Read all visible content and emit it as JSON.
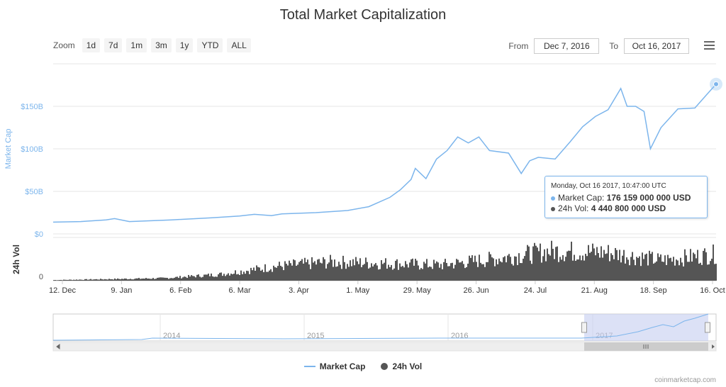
{
  "title": "Total Market Capitalization",
  "zoom": {
    "label": "Zoom",
    "buttons": [
      "1d",
      "7d",
      "1m",
      "3m",
      "1y",
      "YTD",
      "ALL"
    ]
  },
  "range": {
    "from_label": "From",
    "from_value": "Dec 7, 2016",
    "to_label": "To",
    "to_value": "Oct 16, 2017"
  },
  "menu_icon": "hamburger-menu-icon",
  "colors": {
    "market_cap": "#7cb5ec",
    "volume": "#555555",
    "navigator_mask": "#c4cdf0",
    "grid": "#e6e6e6"
  },
  "tooltip": {
    "header": "Monday, Oct 16 2017, 10:47:00 UTC",
    "market_cap_label": "Market Cap:",
    "market_cap_value": "176 159 000 000 USD",
    "volume_label": "24h Vol:",
    "volume_value": "4 440 800 000 USD"
  },
  "legend": {
    "market_cap": "Market Cap",
    "volume": "24h Vol"
  },
  "credit": "coinmarketcap.com",
  "chart_data": {
    "type": "line",
    "title": "Total Market Capitalization",
    "y_axis": {
      "label": "Market Cap",
      "tick_labels": [
        "$0",
        "$50B",
        "$100B",
        "$150B"
      ],
      "ticks": [
        0,
        50,
        100,
        150
      ],
      "ylim": [
        0,
        200
      ],
      "unit": "billion USD"
    },
    "volume_axis": {
      "label": "24h Vol",
      "tick_labels": [
        "0"
      ]
    },
    "x_axis": {
      "tick_labels": [
        "12. Dec",
        "9. Jan",
        "6. Feb",
        "6. Mar",
        "3. Apr",
        "1. May",
        "29. May",
        "26. Jun",
        "24. Jul",
        "21. Aug",
        "18. Sep",
        "16. Oct"
      ],
      "range": [
        "2016-12-07",
        "2017-10-16"
      ]
    },
    "series": [
      {
        "name": "Market Cap",
        "x": [
          "2016-12-07",
          "2016-12-20",
          "2017-01-01",
          "2017-01-05",
          "2017-01-12",
          "2017-02-01",
          "2017-02-20",
          "2017-03-05",
          "2017-03-12",
          "2017-03-20",
          "2017-03-25",
          "2017-04-10",
          "2017-04-25",
          "2017-05-05",
          "2017-05-15",
          "2017-05-20",
          "2017-05-25",
          "2017-05-27",
          "2017-06-01",
          "2017-06-06",
          "2017-06-11",
          "2017-06-16",
          "2017-06-21",
          "2017-06-26",
          "2017-07-01",
          "2017-07-10",
          "2017-07-16",
          "2017-07-20",
          "2017-07-24",
          "2017-08-01",
          "2017-08-08",
          "2017-08-14",
          "2017-08-20",
          "2017-08-26",
          "2017-09-01",
          "2017-09-04",
          "2017-09-08",
          "2017-09-12",
          "2017-09-15",
          "2017-09-20",
          "2017-09-28",
          "2017-10-06",
          "2017-10-12",
          "2017-10-16"
        ],
        "values": [
          13.8,
          14.5,
          16.5,
          18,
          14.5,
          16.5,
          19,
          21,
          23,
          21.5,
          23.5,
          25,
          27.5,
          32,
          43,
          52,
          64,
          77,
          65,
          88,
          98,
          114,
          107,
          114,
          98,
          95,
          71,
          86,
          90,
          88,
          108,
          126,
          138,
          146,
          171,
          150,
          150,
          144,
          100,
          125,
          147,
          148,
          165,
          176
        ]
      },
      {
        "name": "24h Vol",
        "x_range": [
          "2016-12-07",
          "2017-10-16"
        ],
        "note_values_relative": [
          0.02,
          0.05,
          0.08,
          0.2,
          0.45,
          0.6,
          0.55,
          0.5,
          0.7,
          0.95,
          0.9,
          0.65,
          0.85
        ]
      }
    ],
    "navigator": {
      "tick_labels": [
        "2014",
        "2015",
        "2016",
        "2017"
      ]
    },
    "grid": true,
    "legend_position": "bottom-center"
  }
}
